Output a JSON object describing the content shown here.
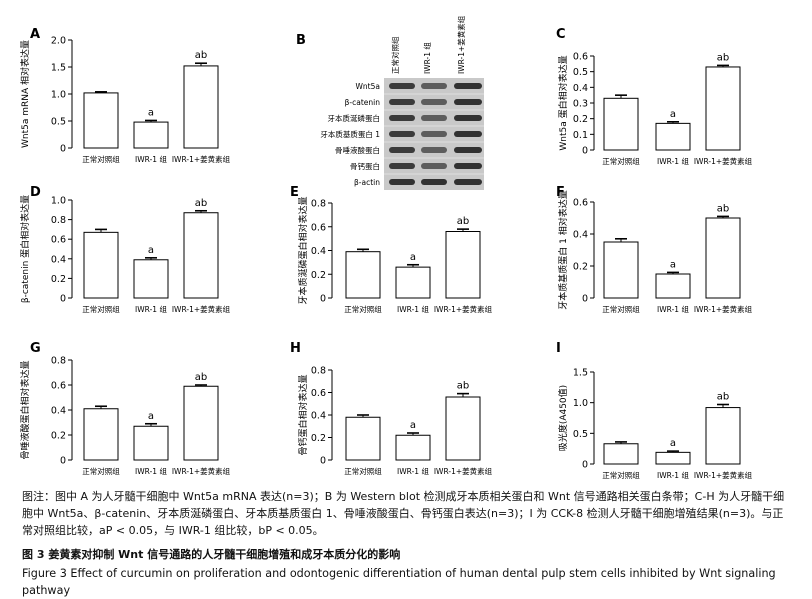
{
  "panels": [
    {
      "letter": "A",
      "type": "bar",
      "ylabel": "Wnt5a mRNA 相对表达量",
      "ylim": [
        0,
        2.0
      ],
      "ticks": [
        "0",
        "0.5",
        "1.0",
        "1.5",
        "2.0"
      ],
      "tick_values": [
        0,
        0.5,
        1.0,
        1.5,
        2.0
      ],
      "categories": [
        "正常对照组",
        "IWR-1 组",
        "IWR-1+姜黄素组"
      ],
      "values": [
        1.02,
        0.48,
        1.52
      ],
      "errors": [
        0.02,
        0.03,
        0.05
      ],
      "sig": [
        "",
        "a",
        "ab"
      ]
    },
    {
      "letter": "C",
      "type": "bar",
      "ylabel": "Wnt5a 蛋白相对表达量",
      "ylim": [
        0,
        0.6
      ],
      "ticks": [
        "0",
        "0.1",
        "0.2",
        "0.3",
        "0.4",
        "0.5",
        "0.6"
      ],
      "tick_values": [
        0,
        0.1,
        0.2,
        0.3,
        0.4,
        0.5,
        0.6
      ],
      "categories": [
        "正常对照组",
        "IWR-1 组",
        "IWR-1+姜黄素组"
      ],
      "values": [
        0.33,
        0.17,
        0.53
      ],
      "errors": [
        0.02,
        0.01,
        0.01
      ],
      "sig": [
        "",
        "a",
        "ab"
      ]
    },
    {
      "letter": "D",
      "type": "bar",
      "ylabel": "β-catenin 蛋白相对表达量",
      "ylim": [
        0,
        1.0
      ],
      "ticks": [
        "0",
        "0.2",
        "0.4",
        "0.6",
        "0.8",
        "1.0"
      ],
      "tick_values": [
        0,
        0.2,
        0.4,
        0.6,
        0.8,
        1.0
      ],
      "categories": [
        "正常对照组",
        "IWR-1 组",
        "IWR-1+姜黄素组"
      ],
      "values": [
        0.67,
        0.39,
        0.87
      ],
      "errors": [
        0.03,
        0.02,
        0.02
      ],
      "sig": [
        "",
        "a",
        "ab"
      ]
    },
    {
      "letter": "E",
      "type": "bar",
      "ylabel": "牙本质涎磷蛋白相对表达量",
      "ylim": [
        0,
        0.8
      ],
      "ticks": [
        "0",
        "0.2",
        "0.4",
        "0.6",
        "0.8"
      ],
      "tick_values": [
        0,
        0.2,
        0.4,
        0.6,
        0.8
      ],
      "categories": [
        "正常对照组",
        "IWR-1 组",
        "IWR-1+姜黄素组"
      ],
      "values": [
        0.39,
        0.26,
        0.56
      ],
      "errors": [
        0.02,
        0.02,
        0.02
      ],
      "sig": [
        "",
        "a",
        "ab"
      ]
    },
    {
      "letter": "F",
      "type": "bar",
      "ylabel": "牙本质基质蛋白 1 相对表达量",
      "ylim": [
        0,
        0.6
      ],
      "ticks": [
        "0",
        "0.2",
        "0.4",
        "0.6"
      ],
      "tick_values": [
        0,
        0.2,
        0.4,
        0.6
      ],
      "categories": [
        "正常对照组",
        "IWR-1 组",
        "IWR-1+姜黄素组"
      ],
      "values": [
        0.35,
        0.15,
        0.5
      ],
      "errors": [
        0.02,
        0.01,
        0.01
      ],
      "sig": [
        "",
        "a",
        "ab"
      ]
    },
    {
      "letter": "G",
      "type": "bar",
      "ylabel": "骨唾液酸蛋白相对表达量",
      "ylim": [
        0,
        0.8
      ],
      "ticks": [
        "0",
        "0.2",
        "0.4",
        "0.6",
        "0.8"
      ],
      "tick_values": [
        0,
        0.2,
        0.4,
        0.6,
        0.8
      ],
      "categories": [
        "正常对照组",
        "IWR-1 组",
        "IWR-1+姜黄素组"
      ],
      "values": [
        0.41,
        0.27,
        0.59
      ],
      "errors": [
        0.02,
        0.02,
        0.01
      ],
      "sig": [
        "",
        "a",
        "ab"
      ]
    },
    {
      "letter": "H",
      "type": "bar",
      "ylabel": "骨钙蛋白相对表达量",
      "ylim": [
        0,
        0.8
      ],
      "ticks": [
        "0",
        "0.2",
        "0.4",
        "0.6",
        "0.8"
      ],
      "tick_values": [
        0,
        0.2,
        0.4,
        0.6,
        0.8
      ],
      "categories": [
        "正常对照组",
        "IWR-1 组",
        "IWR-1+姜黄素组"
      ],
      "values": [
        0.38,
        0.22,
        0.56
      ],
      "errors": [
        0.02,
        0.02,
        0.03
      ],
      "sig": [
        "",
        "a",
        "ab"
      ]
    },
    {
      "letter": "I",
      "type": "bar",
      "ylabel": "吸光度(A450值)",
      "ylim": [
        0,
        1.5
      ],
      "ticks": [
        "0",
        "0.5",
        "1.0",
        "1.5"
      ],
      "tick_values": [
        0,
        0.5,
        1.0,
        1.5
      ],
      "categories": [
        "正常对照组",
        "IWR-1 组",
        "IWR-1+姜黄素组"
      ],
      "values": [
        0.33,
        0.19,
        0.92
      ],
      "errors": [
        0.03,
        0.02,
        0.05
      ],
      "sig": [
        "",
        "a",
        "ab"
      ]
    }
  ],
  "chart_data": [
    {
      "type": "bar",
      "title": "A",
      "ylabel": "Wnt5a mRNA 相对表达量",
      "ylim": [
        0,
        2.0
      ],
      "categories": [
        "正常对照组",
        "IWR-1 组",
        "IWR-1+姜黄素组"
      ],
      "values": [
        1.02,
        0.48,
        1.52
      ]
    },
    {
      "type": "bar",
      "title": "C",
      "ylabel": "Wnt5a 蛋白相对表达量",
      "ylim": [
        0,
        0.6
      ],
      "categories": [
        "正常对照组",
        "IWR-1 组",
        "IWR-1+姜黄素组"
      ],
      "values": [
        0.33,
        0.17,
        0.53
      ]
    },
    {
      "type": "bar",
      "title": "D",
      "ylabel": "β-catenin 蛋白相对表达量",
      "ylim": [
        0,
        1.0
      ],
      "categories": [
        "正常对照组",
        "IWR-1 组",
        "IWR-1+姜黄素组"
      ],
      "values": [
        0.67,
        0.39,
        0.87
      ]
    },
    {
      "type": "bar",
      "title": "E",
      "ylabel": "牙本质涎磷蛋白相对表达量",
      "ylim": [
        0,
        0.8
      ],
      "categories": [
        "正常对照组",
        "IWR-1 组",
        "IWR-1+姜黄素组"
      ],
      "values": [
        0.39,
        0.26,
        0.56
      ]
    },
    {
      "type": "bar",
      "title": "F",
      "ylabel": "牙本质基质蛋白 1 相对表达量",
      "ylim": [
        0,
        0.6
      ],
      "categories": [
        "正常对照组",
        "IWR-1 组",
        "IWR-1+姜黄素组"
      ],
      "values": [
        0.35,
        0.15,
        0.5
      ]
    },
    {
      "type": "bar",
      "title": "G",
      "ylabel": "骨唾液酸蛋白相对表达量",
      "ylim": [
        0,
        0.8
      ],
      "categories": [
        "正常对照组",
        "IWR-1 组",
        "IWR-1+姜黄素组"
      ],
      "values": [
        0.41,
        0.27,
        0.59
      ]
    },
    {
      "type": "bar",
      "title": "H",
      "ylabel": "骨钙蛋白相对表达量",
      "ylim": [
        0,
        0.8
      ],
      "categories": [
        "正常对照组",
        "IWR-1 组",
        "IWR-1+姜黄素组"
      ],
      "values": [
        0.38,
        0.22,
        0.56
      ]
    },
    {
      "type": "bar",
      "title": "I",
      "ylabel": "吸光度(A450值)",
      "ylim": [
        0,
        1.5
      ],
      "categories": [
        "正常对照组",
        "IWR-1 组",
        "IWR-1+姜黄素组"
      ],
      "values": [
        0.33,
        0.19,
        0.92
      ]
    }
  ],
  "blot": {
    "letter": "B",
    "columns": [
      "正常对照组",
      "IWR-1 组",
      "IWR-1+姜黄素组"
    ],
    "rows": [
      "Wnt5a",
      "β-catenin",
      "牙本质涎磷蛋白",
      "牙本质基质蛋白 1",
      "骨唾液酸蛋白",
      "骨钙蛋白",
      "β-actin"
    ]
  },
  "colors": {
    "bar_fill": "#ffffff",
    "bar_stroke": "#000000",
    "blot_bg": "#c9c9c9",
    "band": "#2a2a2a"
  },
  "caption": {
    "note": "图注：图中 A 为人牙髓干细胞中 Wnt5a mRNA 表达(n=3)；B 为 Western blot 检测成牙本质相关蛋白和 Wnt 信号通路相关蛋白条带；C-H 为人牙髓干细胞中 Wnt5a、β-catenin、牙本质涎磷蛋白、牙本质基质蛋白 1、骨唾液酸蛋白、骨钙蛋白表达(n=3)；I 为 CCK-8 检测人牙髓干细胞增殖结果(n=3)。与正常对照组比较，aP < 0.05，与 IWR-1 组比较，bP < 0.05。",
    "title_cn": "图 3   姜黄素对抑制 Wnt 信号通路的人牙髓干细胞增殖和成牙本质分化的影响",
    "title_en": "Figure 3   Effect of curcumin on proliferation and odontogenic differentiation of human dental pulp stem cells inhibited by Wnt signaling pathway"
  }
}
